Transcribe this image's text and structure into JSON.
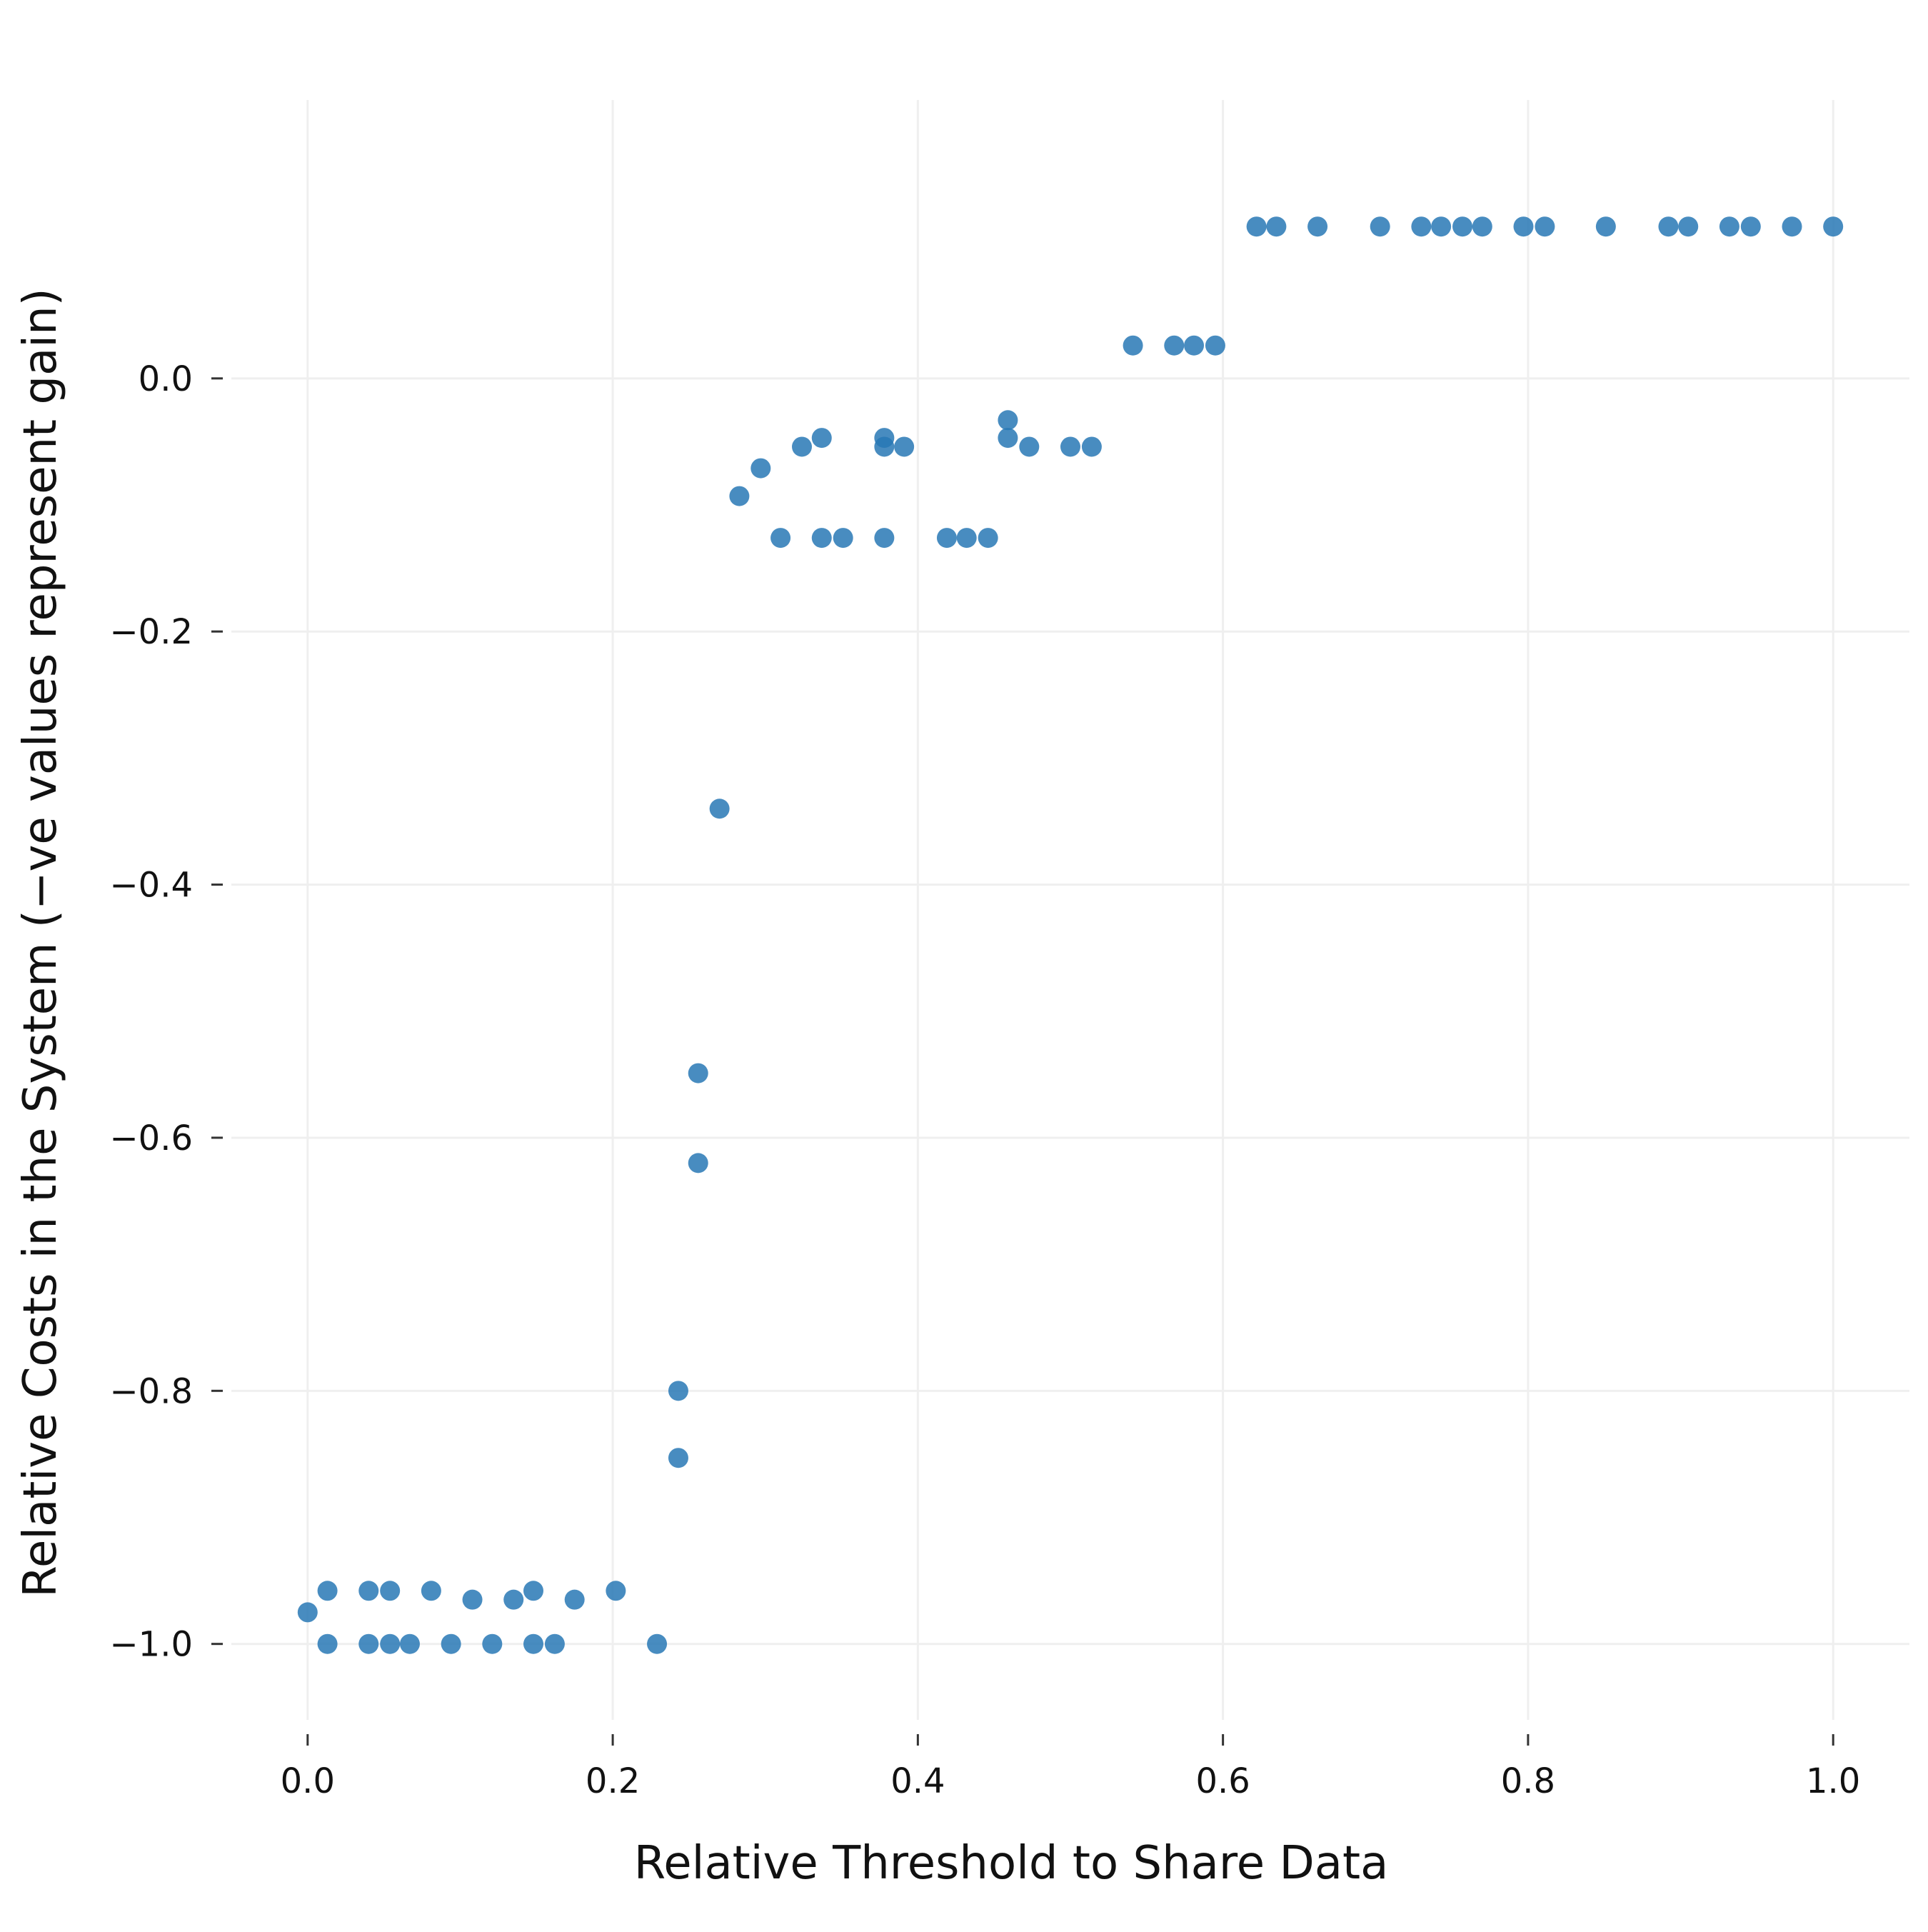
{
  "chart_data": {
    "type": "scatter",
    "title": "",
    "xlabel": "Relative Threshold to Share Data",
    "ylabel": "Relative Costs in the System (−ve values represent gain)",
    "xlim": [
      -0.05,
      1.05
    ],
    "ylim": [
      -1.06,
      0.22
    ],
    "xticks": [
      0.0,
      0.2,
      0.4,
      0.6,
      0.8,
      1.0
    ],
    "xtick_labels": [
      "0.0",
      "0.2",
      "0.4",
      "0.6",
      "0.8",
      "1.0"
    ],
    "yticks": [
      0.0,
      -0.2,
      -0.4,
      -0.6,
      -0.8,
      -1.0
    ],
    "ytick_labels": [
      "0.0",
      "−0.2",
      "−0.4",
      "−0.6",
      "−0.8",
      "−1.0"
    ],
    "grid": true,
    "color": "#2878b5",
    "points": [
      [
        0.0,
        -0.975
      ],
      [
        0.013,
        -0.958
      ],
      [
        0.013,
        -1.0
      ],
      [
        0.04,
        -0.958
      ],
      [
        0.04,
        -1.0
      ],
      [
        0.054,
        -0.958
      ],
      [
        0.054,
        -1.0
      ],
      [
        0.067,
        -1.0
      ],
      [
        0.081,
        -0.958
      ],
      [
        0.094,
        -1.0
      ],
      [
        0.108,
        -0.965
      ],
      [
        0.121,
        -1.0
      ],
      [
        0.135,
        -0.965
      ],
      [
        0.148,
        -0.958
      ],
      [
        0.148,
        -1.0
      ],
      [
        0.162,
        -1.0
      ],
      [
        0.175,
        -0.965
      ],
      [
        0.202,
        -0.958
      ],
      [
        0.229,
        -1.0
      ],
      [
        0.243,
        -0.8
      ],
      [
        0.243,
        -0.853
      ],
      [
        0.256,
        -0.549
      ],
      [
        0.256,
        -0.62
      ],
      [
        0.27,
        -0.34
      ],
      [
        0.283,
        -0.093
      ],
      [
        0.297,
        -0.071
      ],
      [
        0.31,
        -0.126
      ],
      [
        0.324,
        -0.054
      ],
      [
        0.337,
        -0.047
      ],
      [
        0.337,
        -0.126
      ],
      [
        0.351,
        -0.126
      ],
      [
        0.378,
        -0.047
      ],
      [
        0.378,
        -0.054
      ],
      [
        0.378,
        -0.126
      ],
      [
        0.391,
        -0.054
      ],
      [
        0.419,
        -0.126
      ],
      [
        0.432,
        -0.126
      ],
      [
        0.446,
        -0.126
      ],
      [
        0.459,
        -0.033
      ],
      [
        0.459,
        -0.047
      ],
      [
        0.473,
        -0.054
      ],
      [
        0.5,
        -0.054
      ],
      [
        0.514,
        -0.054
      ],
      [
        0.541,
        0.026
      ],
      [
        0.568,
        0.026
      ],
      [
        0.581,
        0.026
      ],
      [
        0.595,
        0.026
      ],
      [
        0.622,
        0.12
      ],
      [
        0.635,
        0.12
      ],
      [
        0.662,
        0.12
      ],
      [
        0.703,
        0.12
      ],
      [
        0.73,
        0.12
      ],
      [
        0.743,
        0.12
      ],
      [
        0.757,
        0.12
      ],
      [
        0.77,
        0.12
      ],
      [
        0.797,
        0.12
      ],
      [
        0.811,
        0.12
      ],
      [
        0.851,
        0.12
      ],
      [
        0.892,
        0.12
      ],
      [
        0.905,
        0.12
      ],
      [
        0.932,
        0.12
      ],
      [
        0.946,
        0.12
      ],
      [
        0.973,
        0.12
      ],
      [
        1.0,
        0.12
      ]
    ]
  }
}
